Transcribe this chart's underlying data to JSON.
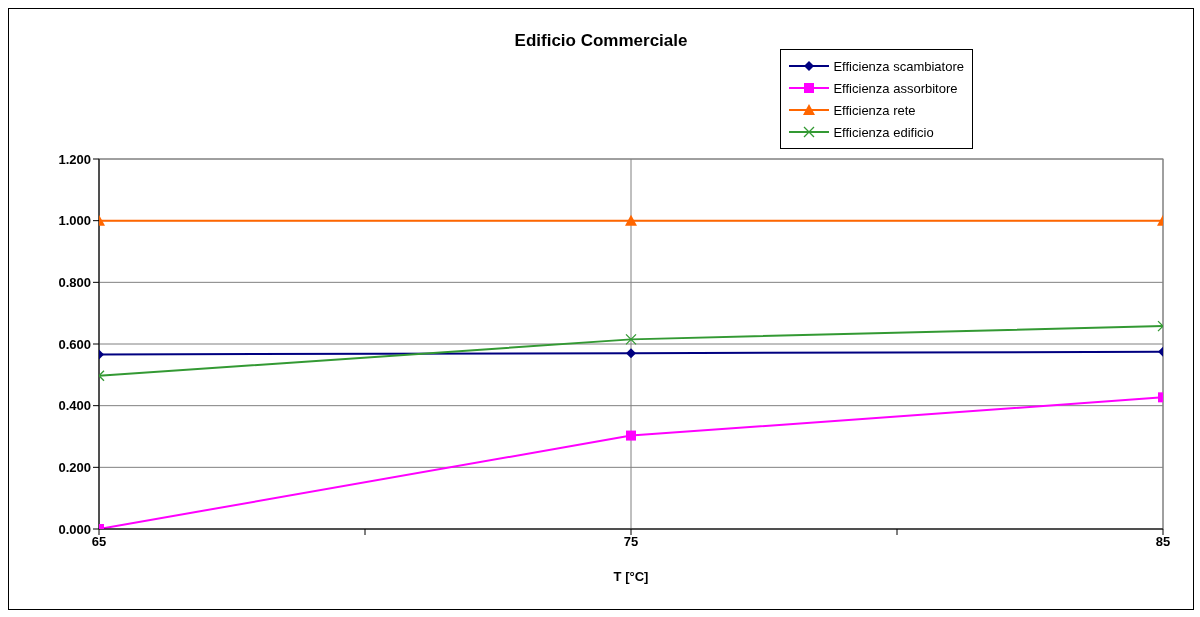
{
  "chart_data": {
    "type": "line",
    "title": "Edificio Commerciale",
    "xlabel": "T [°C]",
    "x": [
      65,
      75,
      85
    ],
    "xlim": [
      65,
      85
    ],
    "xticks": [
      65,
      {
        "value": 70,
        "label": null
      },
      75,
      {
        "value": 80,
        "label": null
      },
      85
    ],
    "ylim": [
      0,
      1.2
    ],
    "yticks": [
      {
        "value": 0,
        "label": "0.000"
      },
      {
        "value": 0.2,
        "label": "0.200"
      },
      {
        "value": 0.4,
        "label": "0.400"
      },
      {
        "value": 0.6,
        "label": "0.600"
      },
      {
        "value": 0.8,
        "label": "0.800"
      },
      {
        "value": 1,
        "label": "1.000"
      },
      {
        "value": 1.2,
        "label": "1.200"
      }
    ],
    "grid": true,
    "legend": "top right",
    "series": [
      {
        "name": "Efficienza scambiatore",
        "color": "#000080",
        "marker": "diamond",
        "values": [
          0.566,
          0.57,
          0.575
        ]
      },
      {
        "name": "Efficienza assorbitore",
        "color": "#ff00ff",
        "marker": "square",
        "values": [
          0.0,
          0.303,
          0.427
        ]
      },
      {
        "name": "Efficienza rete",
        "color": "#ff6600",
        "marker": "triangle",
        "values": [
          1.0,
          1.0,
          1.0
        ]
      },
      {
        "name": "Efficienza edificio",
        "color": "#339933",
        "marker": "cross",
        "values": [
          0.497,
          0.615,
          0.658
        ]
      }
    ]
  }
}
